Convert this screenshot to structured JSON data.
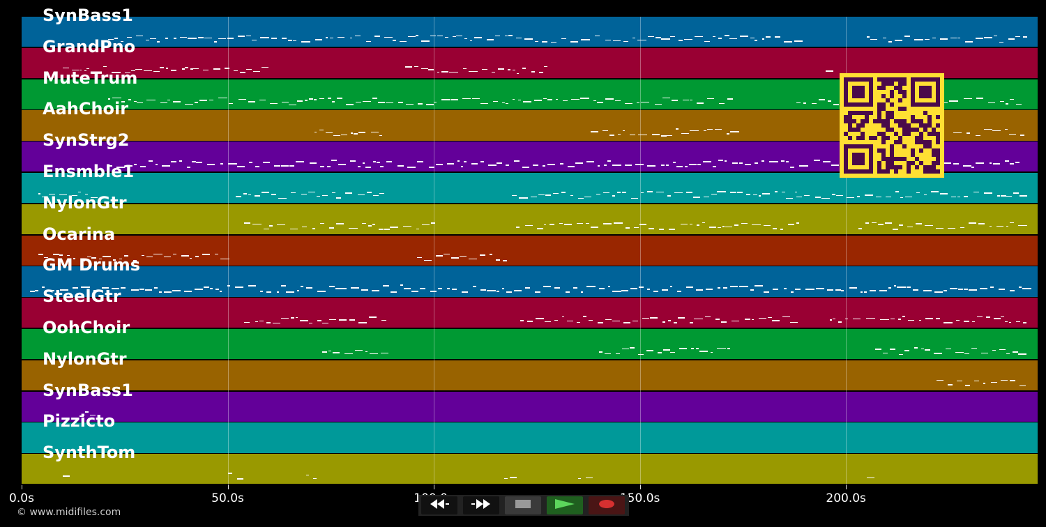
{
  "tracks": [
    {
      "name": "SynBass1",
      "color": "#006399"
    },
    {
      "name": "GrandPno",
      "color": "#990033"
    },
    {
      "name": "MuteTrum",
      "color": "#009933"
    },
    {
      "name": "AahChoir",
      "color": "#996300"
    },
    {
      "name": "SynStrg2",
      "color": "#630099"
    },
    {
      "name": "Ensmble1",
      "color": "#009999"
    },
    {
      "name": "NylonGtr",
      "color": "#999900"
    },
    {
      "name": "Ocarina",
      "color": "#992600"
    },
    {
      "name": "GM Drums",
      "color": "#006399"
    },
    {
      "name": "SteelGtr",
      "color": "#990033"
    },
    {
      "name": "OohChoir",
      "color": "#009933"
    },
    {
      "name": "NylonGtr",
      "color": "#996300"
    },
    {
      "name": "SynBass1",
      "color": "#630099"
    },
    {
      "name": "Pizzicto",
      "color": "#009999"
    },
    {
      "name": "SynthTom",
      "color": "#999900"
    }
  ],
  "timeline": {
    "labels": [
      "0.0s",
      "50.0s",
      "100.0s",
      "150.0s",
      "200.0s"
    ],
    "seconds": [
      0,
      50,
      100,
      150,
      200
    ],
    "duration_shown": 246.5
  },
  "copyright": "© www.midifiles.com",
  "controls": {
    "rewind": "rewind",
    "fast_forward": "fast-forward",
    "stop": "stop",
    "play": "play",
    "record": "record"
  },
  "icons": {
    "rewind": "rewind-icon",
    "fast_forward": "fast-forward-icon",
    "stop": "stop-icon",
    "play": "play-icon",
    "record": "record-icon",
    "qr": "qr-code-icon"
  }
}
